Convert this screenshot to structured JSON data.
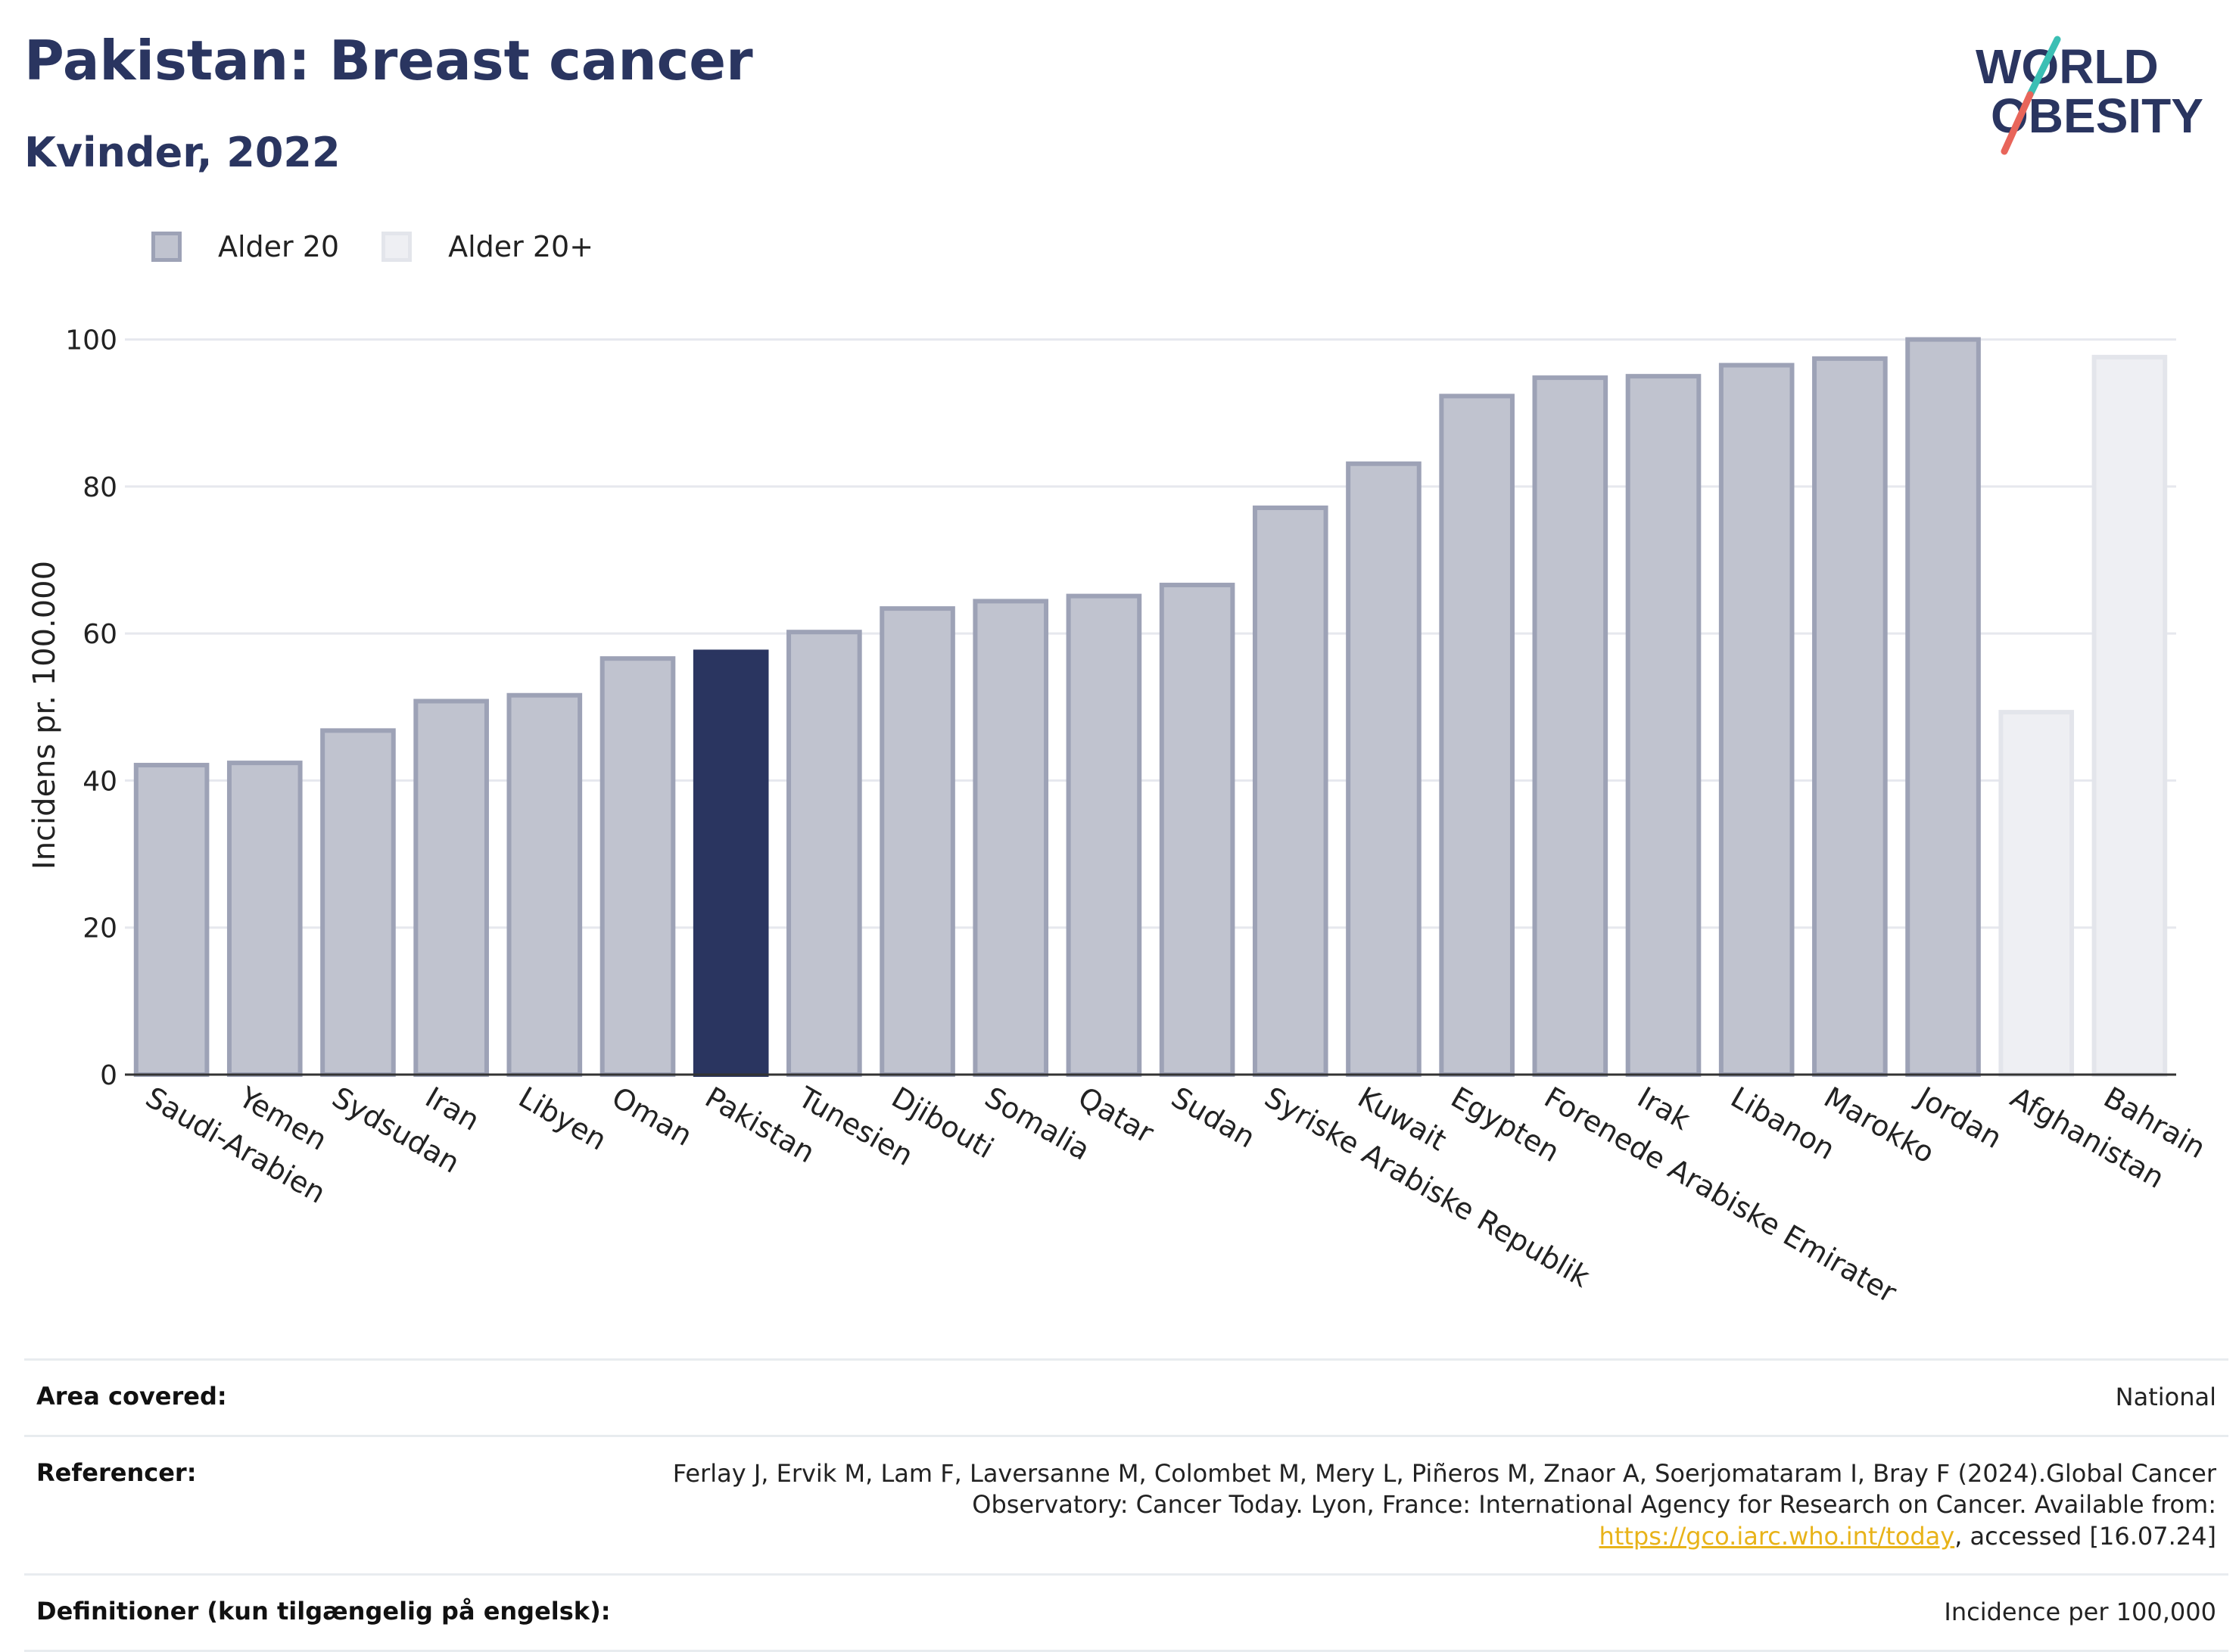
{
  "header": {
    "title": "Pakistan: Breast cancer",
    "subtitle": "Kvinder, 2022",
    "logo_line1": "WORLD",
    "logo_line2": "OBESITY"
  },
  "legend": {
    "items": [
      {
        "label": "Alder 20",
        "fill": "#c0c3cf",
        "stroke": "#9da2b6"
      },
      {
        "label": "Alder 20+",
        "fill": "#eeeff3",
        "stroke": "#e3e5eb"
      }
    ]
  },
  "colors": {
    "highlight": "#2a3560",
    "primary_bar": "#c0c3cf",
    "primary_stroke": "#9da2b6",
    "secondary_bar": "#eeeff3",
    "secondary_stroke": "#e3e5eb",
    "logo_teal": "#3bbfb4",
    "logo_coral": "#e8655a"
  },
  "chart_data": {
    "type": "bar",
    "title": "",
    "ylabel": "Incidens pr. 100.000",
    "xlabel": "",
    "ylim": [
      0,
      105
    ],
    "yticks": [
      0,
      20,
      40,
      60,
      80,
      100
    ],
    "grid": true,
    "legend_position": "top-left",
    "categories": [
      "Saudi-Arabien",
      "Yemen",
      "Sydsudan",
      "Iran",
      "Libyen",
      "Oman",
      "Pakistan",
      "Tunesien",
      "Djibouti",
      "Somalia",
      "Qatar",
      "Sudan",
      "Syriske Arabiske Republik",
      "Kuwait",
      "Egypten",
      "Forenede Arabiske Emirater",
      "Irak",
      "Libanon",
      "Marokko",
      "Jordan",
      "Afghanistan",
      "Bahrain"
    ],
    "values": [
      42.1,
      42.4,
      46.8,
      50.8,
      51.6,
      56.6,
      57.5,
      60.2,
      63.4,
      64.4,
      65.1,
      66.6,
      77.1,
      83.1,
      92.3,
      94.8,
      95.0,
      96.5,
      97.4,
      100.0,
      49.3,
      97.6
    ],
    "series_group": [
      "Alder 20",
      "Alder 20",
      "Alder 20",
      "Alder 20",
      "Alder 20",
      "Alder 20",
      "Alder 20",
      "Alder 20",
      "Alder 20",
      "Alder 20",
      "Alder 20",
      "Alder 20",
      "Alder 20",
      "Alder 20",
      "Alder 20",
      "Alder 20",
      "Alder 20",
      "Alder 20",
      "Alder 20",
      "Alder 20",
      "Alder 20+",
      "Alder 20+"
    ],
    "highlighted": "Pakistan"
  },
  "info": {
    "area_label": "Area covered:",
    "area_value": "National",
    "ref_label": "Referencer:",
    "ref_text_1": "Ferlay J, Ervik M, Lam F, Laversanne M, Colombet M, Mery L, Piñeros M, Znaor A, Soerjomataram I, Bray F (2024).Global Cancer Observatory: Cancer Today. Lyon, France: International Agency for Research on Cancer. Available from: ",
    "ref_link": "https://gco.iarc.who.int/today",
    "ref_text_2": ", accessed [16.07.24]",
    "def_label": "Definitioner (kun tilgængelig på engelsk):",
    "def_value": "Incidence per 100,000"
  }
}
